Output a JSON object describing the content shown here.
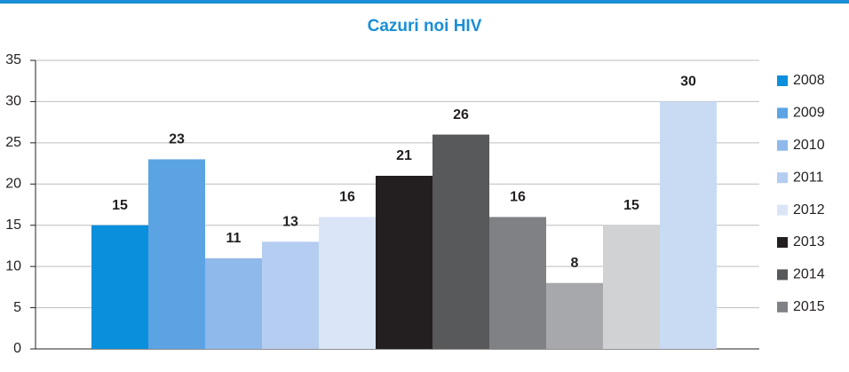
{
  "chart_data": {
    "type": "bar",
    "title": "Cazuri noi HIV",
    "categories": [
      "2008",
      "2009",
      "2010",
      "2011",
      "2012",
      "2013",
      "2014",
      "2015",
      null,
      null,
      null
    ],
    "values": [
      15,
      23,
      11,
      13,
      16,
      21,
      26,
      16,
      8,
      15,
      30
    ],
    "colors": [
      "#0a8fdc",
      "#5ba3e3",
      "#8fb9ea",
      "#b4cdf0",
      "#dae5f7",
      "#231f20",
      "#58595b",
      "#808184",
      "#a7a8ab",
      "#d1d2d3",
      "#c9daf3"
    ],
    "ylim": [
      0,
      35
    ],
    "yticks": [
      0,
      5,
      10,
      15,
      20,
      25,
      30,
      35
    ],
    "grid": true,
    "legend": "right"
  }
}
